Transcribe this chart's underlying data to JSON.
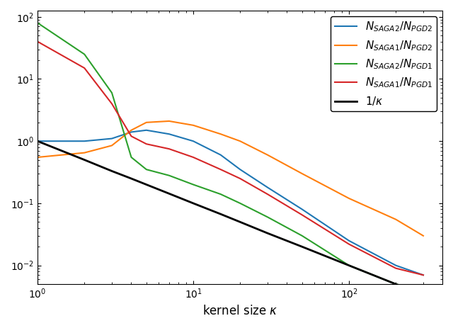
{
  "title": "",
  "xlabel": "kernel size $\\kappa$",
  "ylabel": "",
  "legend_labels": [
    "$N_{SAGA2}/N_{PGD2}$",
    "$N_{SAGA1}/N_{PGD2}$",
    "$N_{SAGA2}/N_{PGD1}$",
    "$N_{SAGA1}/N_{PGD1}$",
    "$1/\\kappa$"
  ],
  "legend_colors": [
    "#1f77b4",
    "#ff7f0e",
    "#2ca02c",
    "#d62728",
    "#000000"
  ],
  "kappa_values": [
    1,
    2,
    3,
    4,
    5,
    7,
    10,
    15,
    20,
    30,
    50,
    100,
    200,
    300
  ],
  "blue_values": [
    1.0,
    1.0,
    1.1,
    1.4,
    1.5,
    1.3,
    1.0,
    0.6,
    0.35,
    0.18,
    0.08,
    0.025,
    0.01,
    0.007
  ],
  "orange_values": [
    0.55,
    0.65,
    0.85,
    1.5,
    2.0,
    2.1,
    1.8,
    1.3,
    1.0,
    0.6,
    0.3,
    0.12,
    0.055,
    0.03
  ],
  "green_values": [
    80,
    25,
    6.0,
    0.55,
    0.35,
    0.28,
    0.2,
    0.14,
    0.1,
    0.06,
    0.03,
    0.01,
    0.005,
    0.004
  ],
  "red_values": [
    40,
    15,
    4.0,
    1.2,
    0.9,
    0.75,
    0.55,
    0.35,
    0.25,
    0.14,
    0.065,
    0.022,
    0.009,
    0.007
  ],
  "black_values": [
    1.0,
    0.5,
    0.33,
    0.25,
    0.2,
    0.143,
    0.1,
    0.067,
    0.05,
    0.033,
    0.02,
    0.01,
    0.005,
    0.0033
  ]
}
